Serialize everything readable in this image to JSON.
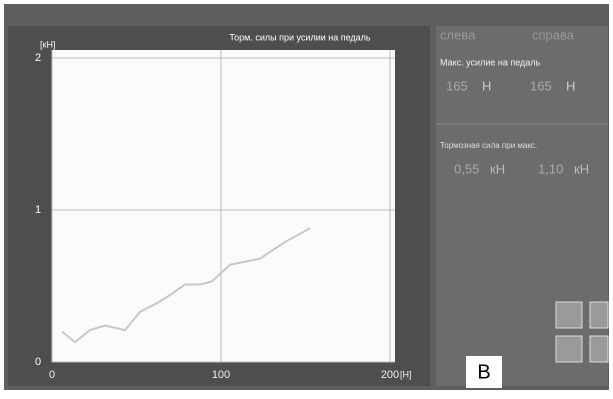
{
  "chart_data": {
    "type": "line",
    "title": "Торм. силы при усилии на педаль",
    "y_label": "[кН]",
    "x_label": "[Н]",
    "x": [
      6,
      13.6,
      22.5,
      31.4,
      43.2,
      52.1,
      60.9,
      69.8,
      78.7,
      87.6,
      94.7,
      105.3,
      123.1,
      137.9,
      152.7
    ],
    "series": [
      {
        "color": "#c8c8c8",
        "values": [
          0.2,
          0.13,
          0.21,
          0.24,
          0.21,
          0.33,
          0.38,
          0.44,
          0.51,
          0.51,
          0.53,
          0.64,
          0.68,
          0.79,
          0.88
        ]
      }
    ],
    "xlim": [
      0,
      200
    ],
    "xticks": [
      0,
      100,
      200
    ],
    "ylim": [
      0,
      2
    ],
    "yticks": [
      0,
      1,
      2
    ],
    "grid": true
  },
  "panel": {
    "columns": [
      "слева",
      "справа"
    ],
    "pedal_label": "Макс. усилие на педаль",
    "pedal_values": [
      "165",
      "165"
    ],
    "pedal_unit": "Н",
    "force_label": "Тормозная сила при макс.",
    "force_values": [
      "0,55",
      "1,10"
    ],
    "force_unit": "кН"
  },
  "figure_label": "B"
}
